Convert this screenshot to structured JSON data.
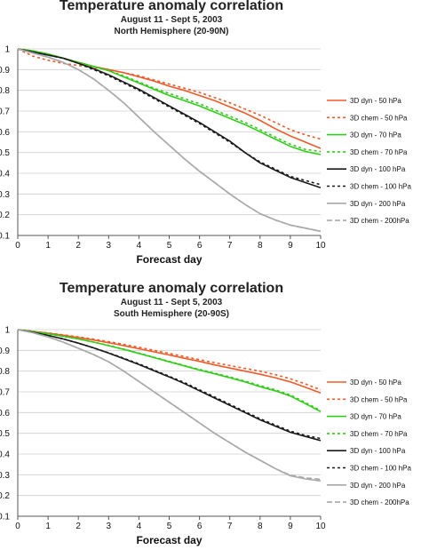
{
  "colors": {
    "orange": "#f05a28",
    "green": "#33cc1a",
    "black": "#1a1a1a",
    "gray": "#a8a8a8",
    "grid": "#cfcfcf",
    "axis": "#555555"
  },
  "chart_data": [
    {
      "type": "line",
      "title": "Temperature anomaly correlation",
      "subtitle1": "August 11 - Sept 5, 2003",
      "subtitle2": "North Hemisphere (20-90N)",
      "xlabel": "Forecast day",
      "ylabel": "",
      "xlim": [
        0,
        10
      ],
      "ylim": [
        0.1,
        1
      ],
      "xticks": [
        "0",
        "1",
        "2",
        "3",
        "4",
        "5",
        "6",
        "7",
        "8",
        "9",
        "10"
      ],
      "yticks": [
        "0.1",
        "0.2",
        "0.3",
        "0.4",
        "0.5",
        "0.6",
        "0.7",
        "0.8",
        "0.9",
        "1"
      ],
      "grid": "horizontal",
      "legend_position": "right",
      "x": [
        0,
        0.5,
        1,
        1.5,
        2,
        2.5,
        3,
        3.5,
        4,
        4.5,
        5,
        5.5,
        6,
        6.5,
        7,
        7.5,
        8,
        8.5,
        9,
        9.5,
        10
      ],
      "series": [
        {
          "name": "3D dyn - 50 hPa",
          "color": "orange",
          "dash": "solid",
          "values": [
            1,
            0.99,
            0.975,
            0.955,
            0.935,
            0.915,
            0.9,
            0.885,
            0.865,
            0.845,
            0.82,
            0.8,
            0.775,
            0.75,
            0.72,
            0.69,
            0.655,
            0.615,
            0.58,
            0.55,
            0.52
          ]
        },
        {
          "name": "3D chem - 50 hPa",
          "color": "orange",
          "dash": "dotted",
          "values": [
            1,
            0.965,
            0.945,
            0.93,
            0.92,
            0.91,
            0.9,
            0.885,
            0.87,
            0.85,
            0.83,
            0.81,
            0.79,
            0.765,
            0.74,
            0.71,
            0.68,
            0.645,
            0.61,
            0.585,
            0.565
          ]
        },
        {
          "name": "3D dyn - 70 hPa",
          "color": "green",
          "dash": "solid",
          "values": [
            1,
            0.99,
            0.975,
            0.955,
            0.935,
            0.915,
            0.895,
            0.865,
            0.835,
            0.805,
            0.775,
            0.75,
            0.725,
            0.695,
            0.665,
            0.635,
            0.6,
            0.565,
            0.53,
            0.505,
            0.49
          ]
        },
        {
          "name": "3D chem - 70 hPa",
          "color": "green",
          "dash": "dotted",
          "values": [
            1,
            0.99,
            0.975,
            0.955,
            0.935,
            0.915,
            0.895,
            0.87,
            0.84,
            0.81,
            0.785,
            0.76,
            0.735,
            0.705,
            0.675,
            0.645,
            0.61,
            0.575,
            0.54,
            0.515,
            0.505
          ]
        },
        {
          "name": "3D dyn - 100 hPa",
          "color": "black",
          "dash": "solid",
          "values": [
            1,
            0.985,
            0.97,
            0.955,
            0.93,
            0.905,
            0.875,
            0.84,
            0.805,
            0.765,
            0.725,
            0.685,
            0.645,
            0.6,
            0.555,
            0.5,
            0.45,
            0.415,
            0.38,
            0.355,
            0.33
          ]
        },
        {
          "name": "3D chem - 100 hPa",
          "color": "black",
          "dash": "dotted",
          "values": [
            1,
            0.985,
            0.97,
            0.955,
            0.93,
            0.9,
            0.87,
            0.835,
            0.8,
            0.76,
            0.72,
            0.68,
            0.64,
            0.595,
            0.55,
            0.5,
            0.455,
            0.42,
            0.385,
            0.365,
            0.345
          ]
        },
        {
          "name": "3D dyn - 200 hPa",
          "color": "gray",
          "dash": "solid",
          "values": [
            1,
            0.98,
            0.96,
            0.935,
            0.9,
            0.855,
            0.8,
            0.74,
            0.67,
            0.6,
            0.535,
            0.47,
            0.41,
            0.355,
            0.3,
            0.25,
            0.205,
            0.175,
            0.15,
            0.135,
            0.12
          ]
        },
        {
          "name": "3D chem - 200hPa",
          "color": "gray",
          "dash": "dashed",
          "values": [
            1,
            0.98,
            0.96,
            0.935,
            0.9,
            0.855,
            0.8,
            0.74,
            0.67,
            0.6,
            0.535,
            0.47,
            0.41,
            0.355,
            0.3,
            0.25,
            0.205,
            0.175,
            0.15,
            0.135,
            0.12
          ]
        }
      ]
    },
    {
      "type": "line",
      "title": "Temperature anomaly correlation",
      "subtitle1": "August 11 - Sept 5, 2003",
      "subtitle2": "South Hemisphere (20-90S)",
      "xlabel": "Forecast day",
      "ylabel": "",
      "xlim": [
        0,
        10
      ],
      "ylim": [
        0.1,
        1
      ],
      "xticks": [
        "0",
        "1",
        "2",
        "3",
        "4",
        "5",
        "6",
        "7",
        "8",
        "9",
        "10"
      ],
      "yticks": [
        "0.1",
        "0.2",
        "0.3",
        "0.4",
        "0.5",
        "0.6",
        "0.7",
        "0.8",
        "0.9",
        "1"
      ],
      "grid": "horizontal",
      "legend_position": "right",
      "x": [
        0,
        0.5,
        1,
        1.5,
        2,
        2.5,
        3,
        3.5,
        4,
        4.5,
        5,
        5.5,
        6,
        6.5,
        7,
        7.5,
        8,
        8.5,
        9,
        9.5,
        10
      ],
      "series": [
        {
          "name": "3D dyn - 50 hPa",
          "color": "orange",
          "dash": "solid",
          "values": [
            1,
            0.992,
            0.983,
            0.973,
            0.962,
            0.95,
            0.937,
            0.923,
            0.908,
            0.893,
            0.878,
            0.862,
            0.847,
            0.83,
            0.815,
            0.8,
            0.785,
            0.768,
            0.748,
            0.722,
            0.695
          ]
        },
        {
          "name": "3D chem - 50 hPa",
          "color": "orange",
          "dash": "dotted",
          "values": [
            1,
            0.992,
            0.984,
            0.975,
            0.965,
            0.954,
            0.942,
            0.929,
            0.915,
            0.9,
            0.885,
            0.87,
            0.855,
            0.84,
            0.827,
            0.813,
            0.8,
            0.783,
            0.763,
            0.738,
            0.71
          ]
        },
        {
          "name": "3D dyn - 70 hPa",
          "color": "green",
          "dash": "solid",
          "values": [
            1,
            0.99,
            0.98,
            0.968,
            0.955,
            0.94,
            0.923,
            0.905,
            0.885,
            0.865,
            0.845,
            0.825,
            0.805,
            0.787,
            0.768,
            0.748,
            0.725,
            0.705,
            0.68,
            0.643,
            0.605
          ]
        },
        {
          "name": "3D chem - 70 hPa",
          "color": "green",
          "dash": "dotted",
          "values": [
            1,
            0.99,
            0.98,
            0.968,
            0.955,
            0.94,
            0.924,
            0.906,
            0.887,
            0.867,
            0.847,
            0.827,
            0.808,
            0.79,
            0.772,
            0.752,
            0.73,
            0.71,
            0.685,
            0.648,
            0.61
          ]
        },
        {
          "name": "3D chem - 100 hPa",
          "color": "black",
          "dash": "dotted",
          "values": [
            1,
            0.987,
            0.972,
            0.955,
            0.935,
            0.912,
            0.888,
            0.862,
            0.835,
            0.805,
            0.775,
            0.745,
            0.71,
            0.675,
            0.64,
            0.605,
            0.57,
            0.54,
            0.51,
            0.49,
            0.475
          ]
        },
        {
          "name": "3D dyn - 100 hPa",
          "color": "black",
          "dash": "solid",
          "values": [
            1,
            0.987,
            0.972,
            0.955,
            0.935,
            0.912,
            0.887,
            0.86,
            0.832,
            0.802,
            0.772,
            0.74,
            0.705,
            0.67,
            0.635,
            0.6,
            0.565,
            0.535,
            0.505,
            0.485,
            0.465
          ]
        },
        {
          "name": "3D dyn - 200 hPa",
          "color": "gray",
          "dash": "solid",
          "values": [
            1,
            0.985,
            0.965,
            0.94,
            0.91,
            0.88,
            0.845,
            0.8,
            0.75,
            0.7,
            0.65,
            0.6,
            0.55,
            0.5,
            0.455,
            0.41,
            0.37,
            0.33,
            0.295,
            0.28,
            0.27
          ]
        },
        {
          "name": "3D chem - 200hPa",
          "color": "gray",
          "dash": "dashed",
          "values": [
            1,
            0.985,
            0.965,
            0.94,
            0.91,
            0.88,
            0.845,
            0.8,
            0.75,
            0.7,
            0.65,
            0.6,
            0.55,
            0.5,
            0.455,
            0.41,
            0.37,
            0.33,
            0.298,
            0.285,
            0.278
          ]
        }
      ],
      "legend_order": [
        "3D dyn - 50 hPa",
        "3D chem - 50 hPa",
        "3D dyn - 70 hPa",
        "3D chem - 70 hPa",
        "3D dyn - 100 hPa",
        "3D chem - 100 hPa",
        "3D dyn - 200 hPa",
        "3D chem - 200hPa"
      ]
    }
  ]
}
